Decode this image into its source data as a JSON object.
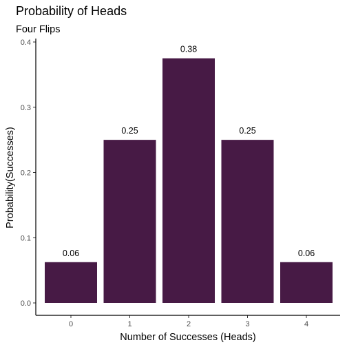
{
  "chart_data": {
    "type": "bar",
    "title": "Probability of Heads",
    "subtitle": "Four Flips",
    "xlabel": "Number of Successes (Heads)",
    "ylabel": "Probability(Successes)",
    "categories": [
      "0",
      "1",
      "2",
      "3",
      "4"
    ],
    "values": [
      0.0625,
      0.25,
      0.375,
      0.25,
      0.0625
    ],
    "value_labels": [
      "0.06",
      "0.25",
      "0.38",
      "0.25",
      "0.06"
    ],
    "ylim": [
      0,
      0.4
    ],
    "yticks": [
      0.0,
      0.1,
      0.2,
      0.3,
      0.4
    ],
    "ytick_labels": [
      "0.0",
      "0.1",
      "0.2",
      "0.3",
      "0.4"
    ],
    "grid": false,
    "legend": "none",
    "bar_color": "#471a45"
  }
}
